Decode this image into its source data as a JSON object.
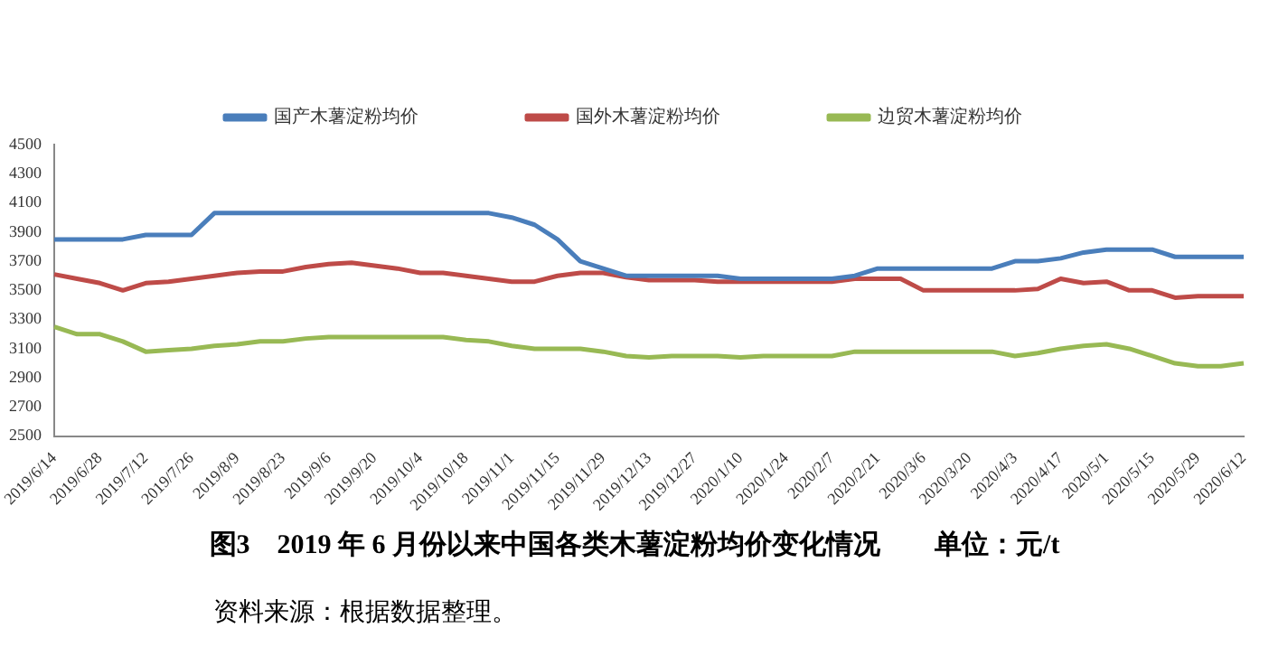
{
  "chart_data": {
    "type": "line",
    "title": "图3　2019 年 6 月份以来中国各类木薯淀粉均价变化情况　　单位：元/t",
    "categories": [
      "2019/6/14",
      null,
      "2019/6/28",
      null,
      "2019/7/12",
      null,
      "2019/7/26",
      null,
      "2019/8/9",
      null,
      "2019/8/23",
      null,
      "2019/9/6",
      null,
      "2019/9/20",
      null,
      "2019/10/4",
      null,
      "2019/10/18",
      null,
      "2019/11/1",
      null,
      "2019/11/15",
      null,
      "2019/11/29",
      null,
      "2019/12/13",
      null,
      "2019/12/27",
      null,
      "2020/1/10",
      null,
      "2020/1/24",
      null,
      "2020/2/7",
      null,
      "2020/2/21",
      null,
      "2020/3/6",
      null,
      "2020/3/20",
      null,
      "2020/4/3",
      null,
      "2020/4/17",
      null,
      "2020/5/1",
      null,
      "2020/5/15",
      null,
      "2020/5/29",
      null,
      "2020/6/12"
    ],
    "series": [
      {
        "name": "国产木薯淀粉均价",
        "color": "#4a7ebb",
        "values": [
          3850,
          3850,
          3850,
          3850,
          3880,
          3880,
          3880,
          4030,
          4030,
          4030,
          4030,
          4030,
          4030,
          4030,
          4030,
          4030,
          4030,
          4030,
          4030,
          4030,
          4000,
          3950,
          3850,
          3700,
          3650,
          3600,
          3600,
          3600,
          3600,
          3600,
          3580,
          3580,
          3580,
          3580,
          3580,
          3600,
          3650,
          3650,
          3650,
          3650,
          3650,
          3650,
          3700,
          3700,
          3720,
          3760,
          3780,
          3780,
          3780,
          3730,
          3730,
          3730,
          3730
        ]
      },
      {
        "name": "国外木薯淀粉均价",
        "color": "#be4b48",
        "values": [
          3610,
          3580,
          3550,
          3500,
          3550,
          3560,
          3580,
          3600,
          3620,
          3630,
          3630,
          3660,
          3680,
          3690,
          3670,
          3650,
          3620,
          3620,
          3600,
          3580,
          3560,
          3560,
          3600,
          3620,
          3620,
          3590,
          3570,
          3570,
          3570,
          3560,
          3560,
          3560,
          3560,
          3560,
          3560,
          3580,
          3580,
          3580,
          3500,
          3500,
          3500,
          3500,
          3500,
          3510,
          3580,
          3550,
          3560,
          3500,
          3500,
          3450,
          3460,
          3460,
          3460
        ]
      },
      {
        "name": "边贸木薯淀粉均价",
        "color": "#98b954",
        "values": [
          3250,
          3200,
          3200,
          3150,
          3080,
          3090,
          3100,
          3120,
          3130,
          3150,
          3150,
          3170,
          3180,
          3180,
          3180,
          3180,
          3180,
          3180,
          3160,
          3150,
          3120,
          3100,
          3100,
          3100,
          3080,
          3050,
          3040,
          3050,
          3050,
          3050,
          3040,
          3050,
          3050,
          3050,
          3050,
          3080,
          3080,
          3080,
          3080,
          3080,
          3080,
          3080,
          3050,
          3070,
          3100,
          3120,
          3130,
          3100,
          3050,
          3000,
          2980,
          2980,
          3000
        ]
      }
    ],
    "ylim": [
      2500,
      4500
    ],
    "yticks": [
      2500,
      2700,
      2900,
      3100,
      3300,
      3500,
      3700,
      3900,
      4100,
      4300,
      4500
    ],
    "grid": false,
    "legend": "top",
    "marker": "none",
    "line_style": "solid",
    "annotations": [
      "资料来源：根据数据整理。"
    ]
  }
}
